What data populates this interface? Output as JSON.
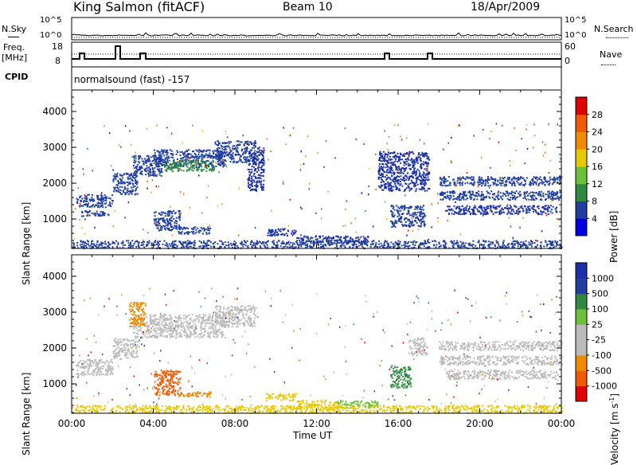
{
  "header": {
    "station": "King Salmon (fitACF)",
    "beam": "Beam 10",
    "date": "18/Apr/2009"
  },
  "strip_labels": {
    "nsky": "N.Sky",
    "nsky_ticks": [
      "10^5",
      "10^0"
    ],
    "nsearch": "N.Search",
    "nsearch_ticks": [
      "10^5",
      "10^0"
    ],
    "freq_line1": "Freq.",
    "freq_line2": "[MHz]",
    "freq_ticks": [
      "18",
      "8"
    ],
    "nave": "Nave",
    "nave_ticks": [
      "60",
      "0"
    ],
    "cpid": "CPID",
    "cpid_text": "normalsound (fast) -157"
  },
  "colors": {
    "power": [
      "#0000e0",
      "#1f3ea0",
      "#2e8a3e",
      "#6dc03a",
      "#e8c800",
      "#f08a00",
      "#f05a00",
      "#e00000"
    ],
    "velocity": [
      "#e00000",
      "#f05a00",
      "#f08a00",
      "#bbbbbb",
      "#bbbbbb",
      "#6dc03a",
      "#2e8a3e",
      "#1f3ea0",
      "#1a2fa8"
    ]
  },
  "chart_data": [
    {
      "type": "heatmap",
      "name": "power",
      "xlabel": "",
      "ylabel": "Slant Range [km]",
      "xlim": [
        0,
        24
      ],
      "ylim": [
        180,
        4600
      ],
      "yticks": [
        "1000",
        "2000",
        "3000",
        "4000"
      ],
      "colorbar_label": "Power [dB]",
      "colorbar_ticks": [
        "4",
        "8",
        "12",
        "16",
        "20",
        "24",
        "28"
      ],
      "colorbar_range": [
        0,
        32
      ],
      "regions": [
        {
          "x": [
            0.2,
            2.0
          ],
          "y": [
            1350,
            1700
          ],
          "c": "#1f3ea0"
        },
        {
          "x": [
            0.4,
            1.8
          ],
          "y": [
            1100,
            1250
          ],
          "c": "#1f3ea0"
        },
        {
          "x": [
            2.0,
            3.2
          ],
          "y": [
            1700,
            2300
          ],
          "c": "#1f3ea0"
        },
        {
          "x": [
            3.0,
            4.4
          ],
          "y": [
            2200,
            2800
          ],
          "c": "#1f3ea0"
        },
        {
          "x": [
            4.0,
            7.5
          ],
          "y": [
            2450,
            2950
          ],
          "c": "#1f3ea0"
        },
        {
          "x": [
            4.5,
            7.0
          ],
          "y": [
            2350,
            2650
          ],
          "c": "#2e8a3e"
        },
        {
          "x": [
            7.0,
            9.0
          ],
          "y": [
            2600,
            3200
          ],
          "c": "#1f3ea0"
        },
        {
          "x": [
            8.6,
            9.4
          ],
          "y": [
            1800,
            3000
          ],
          "c": "#1a2fa8"
        },
        {
          "x": [
            4.0,
            5.3
          ],
          "y": [
            700,
            1250
          ],
          "c": "#1f3ea0"
        },
        {
          "x": [
            5.2,
            6.8
          ],
          "y": [
            600,
            800
          ],
          "c": "#1f3ea0"
        },
        {
          "x": [
            9.5,
            11.0
          ],
          "y": [
            550,
            750
          ],
          "c": "#1a2fa8"
        },
        {
          "x": [
            11.0,
            14.5
          ],
          "y": [
            350,
            550
          ],
          "c": "#1a2fa8"
        },
        {
          "x": [
            15.0,
            17.5
          ],
          "y": [
            1800,
            2900
          ],
          "c": "#1a2fa8"
        },
        {
          "x": [
            15.6,
            17.3
          ],
          "y": [
            800,
            1400
          ],
          "c": "#1f3ea0"
        },
        {
          "x": [
            18.0,
            24.0
          ],
          "y": [
            1950,
            2200
          ],
          "c": "#1f3ea0"
        },
        {
          "x": [
            18.0,
            24.0
          ],
          "y": [
            1550,
            1800
          ],
          "c": "#1f3ea0"
        },
        {
          "x": [
            18.3,
            23.8
          ],
          "y": [
            1150,
            1400
          ],
          "c": "#1a2fa8"
        },
        {
          "x": [
            0.0,
            24.0
          ],
          "y": [
            200,
            420
          ],
          "c": "#1f3ea0"
        }
      ]
    },
    {
      "type": "heatmap",
      "name": "velocity",
      "xlabel": "Time UT",
      "ylabel": "Slant Range [km]",
      "xlim": [
        0,
        24
      ],
      "ylim": [
        180,
        4600
      ],
      "xticks": [
        "00:00",
        "04:00",
        "08:00",
        "12:00",
        "16:00",
        "20:00",
        "00:00"
      ],
      "yticks": [
        "1000",
        "2000",
        "3000",
        "4000"
      ],
      "colorbar_label": "Velocity [m s",
      "colorbar_unit_sup": "-1",
      "colorbar_ticks": [
        "1000",
        "500",
        "100",
        "25",
        "-25",
        "-100",
        "-500",
        "-1000"
      ],
      "regions": [
        {
          "x": [
            0.2,
            2.0
          ],
          "y": [
            1250,
            1700
          ],
          "c": "#bbbbbb"
        },
        {
          "x": [
            2.0,
            3.2
          ],
          "y": [
            1700,
            2300
          ],
          "c": "#bbbbbb"
        },
        {
          "x": [
            3.0,
            7.5
          ],
          "y": [
            2300,
            2950
          ],
          "c": "#bbbbbb"
        },
        {
          "x": [
            7.0,
            9.0
          ],
          "y": [
            2600,
            3200
          ],
          "c": "#bbbbbb"
        },
        {
          "x": [
            2.8,
            3.6
          ],
          "y": [
            2600,
            3300
          ],
          "c": "#f08a00"
        },
        {
          "x": [
            4.0,
            5.3
          ],
          "y": [
            700,
            1400
          ],
          "c": "#f05a00"
        },
        {
          "x": [
            5.2,
            6.8
          ],
          "y": [
            650,
            800
          ],
          "c": "#f08a00"
        },
        {
          "x": [
            9.5,
            11.0
          ],
          "y": [
            550,
            750
          ],
          "c": "#e8c800"
        },
        {
          "x": [
            11.0,
            13.0
          ],
          "y": [
            350,
            550
          ],
          "c": "#e8c800"
        },
        {
          "x": [
            13.0,
            15.0
          ],
          "y": [
            350,
            550
          ],
          "c": "#6dc03a"
        },
        {
          "x": [
            15.6,
            16.6
          ],
          "y": [
            900,
            1500
          ],
          "c": "#2e8a3e"
        },
        {
          "x": [
            16.5,
            17.4
          ],
          "y": [
            1800,
            2300
          ],
          "c": "#bbbbbb"
        },
        {
          "x": [
            18.0,
            24.0
          ],
          "y": [
            1950,
            2200
          ],
          "c": "#bbbbbb"
        },
        {
          "x": [
            18.0,
            24.0
          ],
          "y": [
            1550,
            1800
          ],
          "c": "#bbbbbb"
        },
        {
          "x": [
            18.3,
            23.8
          ],
          "y": [
            1150,
            1400
          ],
          "c": "#bbbbbb"
        },
        {
          "x": [
            0.0,
            24.0
          ],
          "y": [
            200,
            420
          ],
          "c": "#e8c800"
        }
      ]
    }
  ]
}
